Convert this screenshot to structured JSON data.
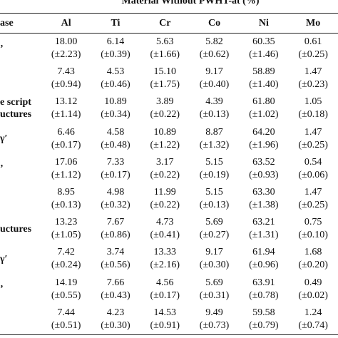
{
  "title": "Material Without PWHT-at (%)",
  "table": {
    "header": [
      "ase",
      "Al",
      "Ti",
      "Cr",
      "Co",
      "Ni",
      "Mo"
    ],
    "rows": [
      {
        "label": [
          "’"
        ],
        "cells": [
          [
            "18.00",
            "(±2.23)"
          ],
          [
            "6.14",
            "(±0.39)"
          ],
          [
            "5.63",
            "(±1.66)"
          ],
          [
            "5.82",
            "(±0.62)"
          ],
          [
            "60.35",
            "(±1.46)"
          ],
          [
            "0.61",
            "(±0.25)"
          ]
        ]
      },
      {
        "cells": [
          [
            "7.43",
            "(±0.94)"
          ],
          [
            "4.53",
            "(±0.46)"
          ],
          [
            "15.10",
            "(±1.75)"
          ],
          [
            "9.17",
            "(±0.40)"
          ],
          [
            "58.89",
            "(±1.40)"
          ],
          [
            "1.47",
            "(±0.23)"
          ]
        ]
      },
      {
        "label": [
          "e script",
          "uctures"
        ],
        "cells": [
          [
            "13.12",
            "(±1.14)"
          ],
          [
            "10.89",
            "(±0.34)"
          ],
          [
            "3.89",
            "(±0.22)"
          ],
          [
            "4.39",
            "(±0.13)"
          ],
          [
            "61.80",
            "(±1.02)"
          ],
          [
            "1.05",
            "(±0.18)"
          ]
        ]
      },
      {
        "label": [
          "γ′"
        ],
        "cells": [
          [
            "6.46",
            "(±0.17)"
          ],
          [
            "4.58",
            "(±0.48)"
          ],
          [
            "10.89",
            "(±1.22)"
          ],
          [
            "8.87",
            "(±1.32)"
          ],
          [
            "64.20",
            "(±1.96)"
          ],
          [
            "1.47",
            "(±0.25)"
          ]
        ]
      },
      {
        "label": [
          "’"
        ],
        "cells": [
          [
            "17.06",
            "(±1.12)"
          ],
          [
            "7.33",
            "(±0.17)"
          ],
          [
            "3.17",
            "(±0.22)"
          ],
          [
            "5.15",
            "(±0.19)"
          ],
          [
            "63.52",
            "(±0.93)"
          ],
          [
            "0.54",
            "(±0.06)"
          ]
        ]
      },
      {
        "cells": [
          [
            "8.95",
            "(±0.13)"
          ],
          [
            "4.98",
            "(±0.32)"
          ],
          [
            "11.99",
            "(±0.22)"
          ],
          [
            "5.15",
            "(±0.13)"
          ],
          [
            "63.30",
            "(±1.38)"
          ],
          [
            "1.47",
            "(±0.25)"
          ]
        ]
      },
      {
        "label": [
          "uctures"
        ],
        "cells": [
          [
            "13.23",
            "(±1.05)"
          ],
          [
            "7.67",
            "(±0.86)"
          ],
          [
            "4.73",
            "(±0.41)"
          ],
          [
            "5.69",
            "(±0.27)"
          ],
          [
            "63.21",
            "(±1.31)"
          ],
          [
            "0.75",
            "(±0.10)"
          ]
        ]
      },
      {
        "label": [
          "γ′"
        ],
        "cells": [
          [
            "7.42",
            "(±0.24)"
          ],
          [
            "3.74",
            "(±0.56)"
          ],
          [
            "13.33",
            "(±2.16)"
          ],
          [
            "9.17",
            "(±0.30)"
          ],
          [
            "61.94",
            "(±0.96)"
          ],
          [
            "1.68",
            "(±0.20)"
          ]
        ]
      },
      {
        "label": [
          "’"
        ],
        "cells": [
          [
            "14.19",
            "(±0.55)"
          ],
          [
            "7.66",
            "(±0.43)"
          ],
          [
            "4.56",
            "(±0.17)"
          ],
          [
            "5.69",
            "(±0.31)"
          ],
          [
            "63.91",
            "(±0.78)"
          ],
          [
            "0.49",
            "(±0.02)"
          ]
        ]
      },
      {
        "cells": [
          [
            "7.44",
            "(±0.51)"
          ],
          [
            "4.23",
            "(±0.30)"
          ],
          [
            "14.53",
            "(±0.91)"
          ],
          [
            "9.49",
            "(±0.73)"
          ],
          [
            "59.58",
            "(±0.79)"
          ],
          [
            "1.24",
            "(±0.74)"
          ]
        ]
      }
    ]
  }
}
